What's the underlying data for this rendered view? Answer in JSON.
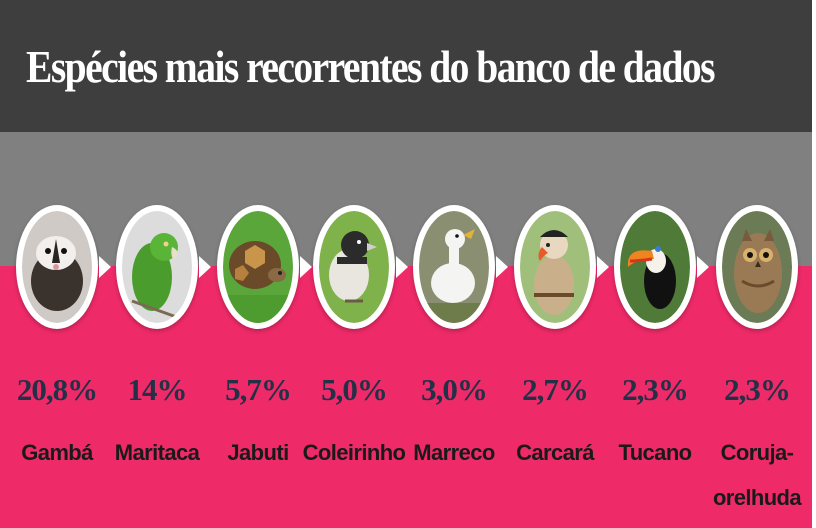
{
  "title": "Espécies mais recorrentes  do banco de dados",
  "chart_data": {
    "type": "bar",
    "title": "Espécies mais recorrentes  do banco de dados",
    "categories": [
      "Gambá",
      "Maritaca",
      "Jabuti",
      "Coleirinho",
      "Marreco",
      "Carcará",
      "Tucano",
      "Coruja-orelhuda"
    ],
    "values": [
      20.8,
      14,
      5.7,
      5.0,
      3.0,
      2.7,
      2.3,
      2.3
    ],
    "value_labels": [
      "20,8%",
      "14%",
      "5,7%",
      "5,0%",
      "3,0%",
      "2,7%",
      "2,3%",
      "2,3%"
    ],
    "labels": [
      "Gambá",
      "Maritaca",
      "Jabuti",
      "Coleirinho",
      "Marreco",
      "Carcará",
      "Tucano",
      "Coruja-\norelhuda"
    ],
    "unit": "%"
  },
  "colors": {
    "title_band": "#3e3e3e",
    "grey_band": "#808080",
    "pink_band": "#ef2a69",
    "percent_text": "#233046",
    "label_text": "#1a1a1a"
  },
  "images": [
    "opossum-photo",
    "parakeet-photo",
    "tortoise-photo",
    "seedeater-photo",
    "duck-photo",
    "caracara-photo",
    "toucan-photo",
    "owl-photo"
  ]
}
